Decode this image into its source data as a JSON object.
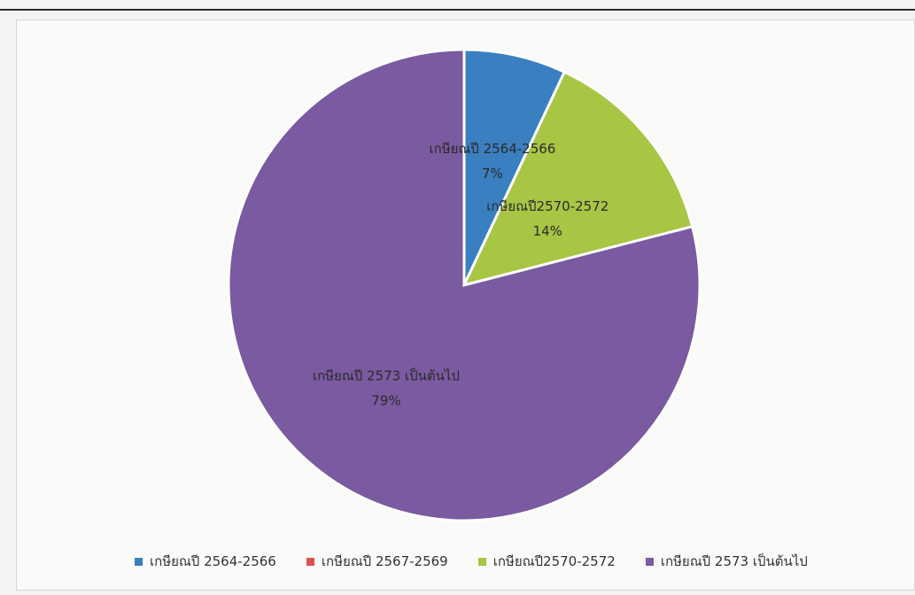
{
  "chart_data": {
    "type": "pie",
    "title": "",
    "series": [
      {
        "name": "",
        "values": [
          7,
          0,
          14,
          79
        ]
      }
    ],
    "categories": [
      "เกษียณปี 2564-2566",
      "เกษียณปี 2567-2569",
      "เกษียณปี2570-2572",
      "เกษียณปี 2573 เป็นต้นไป"
    ],
    "slice_labels": [
      {
        "category": "เกษียณปี 2564-2566",
        "percent_text": "7%"
      },
      {
        "category": "เกษียณปี2570-2572",
        "percent_text": "14%"
      },
      {
        "category": "เกษียณปี 2573 เป็นต้นไป",
        "percent_text": "79%"
      }
    ],
    "colors": [
      "#3a7fc0",
      "#d9534f",
      "#a8c544",
      "#7a5aa0"
    ],
    "legend_position": "bottom"
  }
}
